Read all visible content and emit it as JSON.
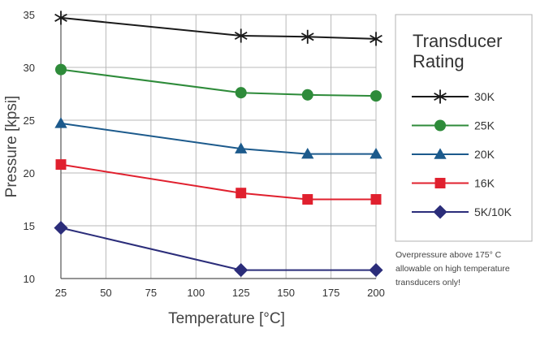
{
  "chart_data": {
    "type": "line",
    "title": "",
    "xlabel": "Temperature [°C]",
    "ylabel": "Pressure [kpsi]",
    "xlim": [
      25,
      200
    ],
    "ylim": [
      10,
      35
    ],
    "x_ticks": [
      25,
      50,
      75,
      100,
      125,
      150,
      175,
      200
    ],
    "y_ticks": [
      10,
      15,
      20,
      25,
      30,
      35
    ],
    "grid": true,
    "legend_title_lines": [
      "Transducer",
      "Rating"
    ],
    "legend_position": "right",
    "series": [
      {
        "name": "30K",
        "color": "#1a1a1a",
        "marker": "asterisk",
        "x": [
          25,
          125,
          162,
          200
        ],
        "y": [
          34.7,
          33.0,
          32.9,
          32.7
        ]
      },
      {
        "name": "25K",
        "color": "#2e8b3a",
        "marker": "circle",
        "x": [
          25,
          125,
          162,
          200
        ],
        "y": [
          29.8,
          27.6,
          27.4,
          27.3
        ]
      },
      {
        "name": "20K",
        "color": "#1c5a8c",
        "marker": "triangle",
        "x": [
          25,
          125,
          162,
          200
        ],
        "y": [
          24.7,
          22.3,
          21.8,
          21.8
        ]
      },
      {
        "name": "16K",
        "color": "#e0202e",
        "marker": "square",
        "x": [
          25,
          125,
          162,
          200
        ],
        "y": [
          20.8,
          18.1,
          17.5,
          17.5
        ]
      },
      {
        "name": "5K/10K",
        "color": "#2b2d7a",
        "marker": "diamond",
        "x": [
          25,
          125,
          200
        ],
        "y": [
          14.8,
          10.8,
          10.8
        ]
      }
    ],
    "note_lines": [
      "Overpressure above 175° C",
      "allowable on high temperature",
      "transducers only!"
    ]
  }
}
